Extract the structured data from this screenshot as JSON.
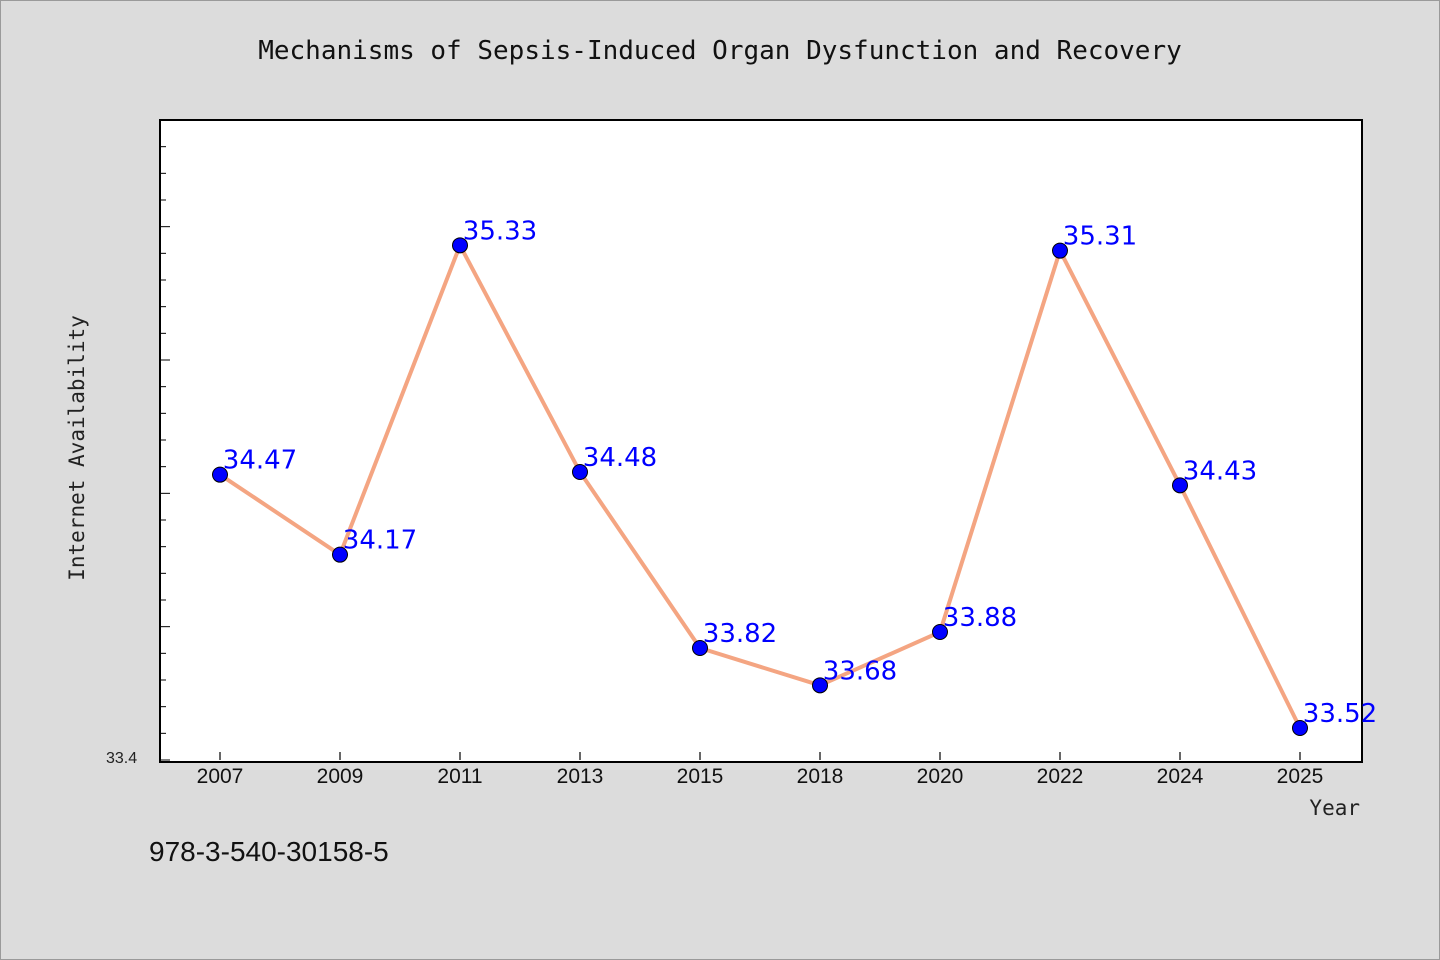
{
  "page": {
    "isbn": "978-3-540-30158-5"
  },
  "colors": {
    "background": "#dcdcdc",
    "plot_background": "#ffffff",
    "line": "#f4a582",
    "marker": "#0000ff",
    "data_label": "#0000ff"
  },
  "chart_data": {
    "type": "line",
    "title": "Mechanisms of Sepsis-Induced Organ Dysfunction and Recovery",
    "xlabel": "Year",
    "ylabel": "Internet Availability",
    "categories": [
      "2007",
      "2009",
      "2011",
      "2013",
      "2015",
      "2018",
      "2020",
      "2022",
      "2024",
      "2025"
    ],
    "series": [
      {
        "values": [
          34.47,
          34.17,
          35.33,
          34.48,
          33.82,
          33.68,
          33.88,
          35.31,
          34.43,
          33.52
        ],
        "labels": [
          "34.47",
          "34.17",
          "35.33",
          "34.48",
          "33.82",
          "33.68",
          "33.88",
          "35.31",
          "34.43",
          "33.52"
        ]
      }
    ],
    "ylim": [
      33.4,
      35.8
    ],
    "y_tick_labels": [
      "33.4"
    ],
    "y_minor_tick_step": 0.1,
    "grid": false,
    "markers": "circle"
  }
}
